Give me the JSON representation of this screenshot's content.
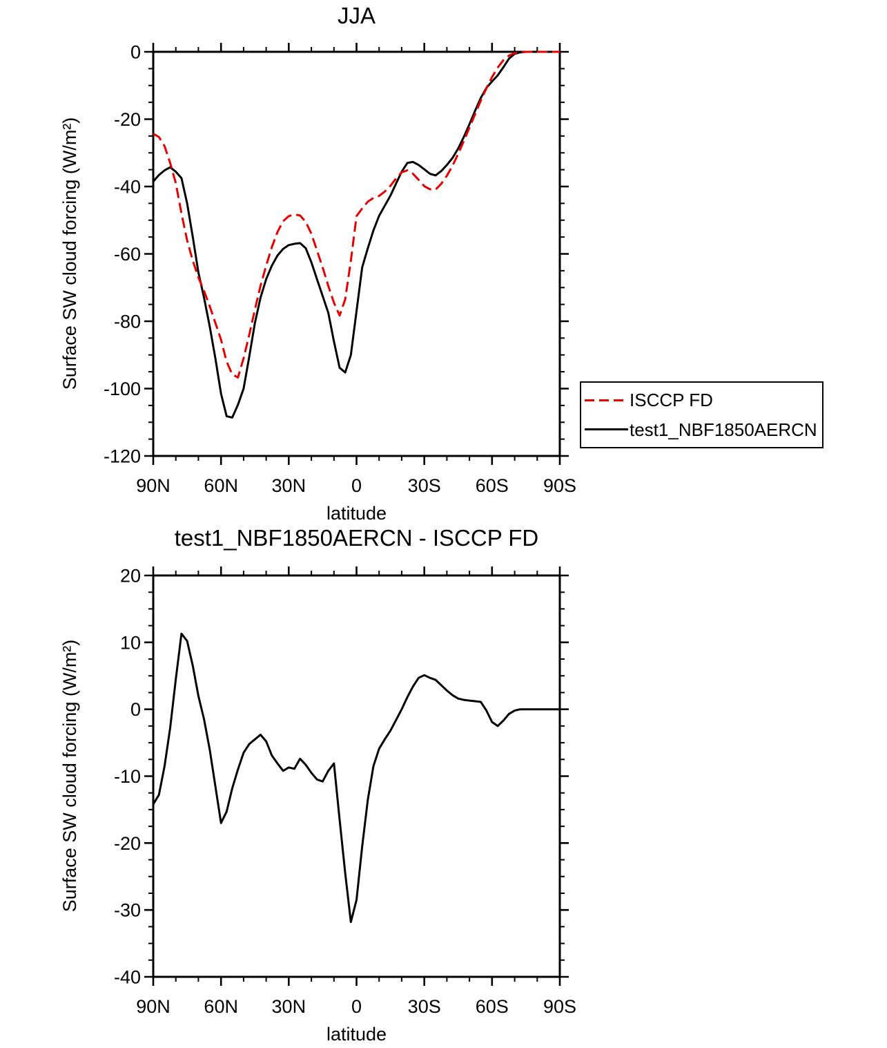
{
  "figure": {
    "background": "#ffffff",
    "axis_color": "#000000",
    "red_color": "#e60000"
  },
  "top_chart": {
    "title": "JJA",
    "xlabel": "latitude",
    "ylabel": "Surface SW cloud forcing (W/m²)",
    "legend": {
      "entries": [
        {
          "label": "ISCCP FD",
          "color": "#e60000",
          "style": "dashed"
        },
        {
          "label": "test1_NBF1850AERCN",
          "color": "#000000",
          "style": "solid"
        }
      ]
    }
  },
  "bottom_chart": {
    "title": "test1_NBF1850AERCN - ISCCP FD",
    "xlabel": "latitude",
    "ylabel": "Surface SW cloud forcing (W/m²)"
  },
  "chart_data": [
    {
      "type": "line",
      "title": "JJA",
      "xlabel": "latitude",
      "ylabel": "Surface SW cloud forcing (W/m2)",
      "xlim": [
        90,
        -90
      ],
      "ylim": [
        -120,
        0
      ],
      "x_tick_values": [
        90,
        60,
        30,
        0,
        -30,
        -60,
        -90
      ],
      "x_tick_labels": [
        "90N",
        "60N",
        "30N",
        "0",
        "30S",
        "60S",
        "90S"
      ],
      "x_minor_step": 10,
      "y_tick_values": [
        0,
        -20,
        -40,
        -60,
        -80,
        -100,
        -120
      ],
      "y_tick_labels": [
        "0",
        "-20",
        "-40",
        "-60",
        "-80",
        "-100",
        "-120"
      ],
      "y_minor_step": 5,
      "grid": false,
      "legend_position": "outside-right",
      "x": [
        90,
        87.5,
        85,
        82.5,
        80,
        77.5,
        75,
        72.5,
        70,
        67.5,
        65,
        62.5,
        60,
        57.5,
        55,
        52.5,
        50,
        47.5,
        45,
        42.5,
        40,
        37.5,
        35,
        32.5,
        30,
        27.5,
        25,
        22.5,
        20,
        17.5,
        15,
        12.5,
        10,
        7.5,
        5,
        2.5,
        0,
        -2.5,
        -5,
        -7.5,
        -10,
        -12.5,
        -15,
        -17.5,
        -20,
        -22.5,
        -25,
        -27.5,
        -30,
        -32.5,
        -35,
        -37.5,
        -40,
        -42.5,
        -45,
        -47.5,
        -50,
        -52.5,
        -55,
        -57.5,
        -60,
        -62.5,
        -65,
        -67.5,
        -70,
        -72.5,
        -75,
        -77.5,
        -80,
        -82.5,
        -85,
        -87.5,
        -90
      ],
      "series": [
        {
          "name": "test1_NBF1850AERCN",
          "color": "#000000",
          "dashed": false,
          "values": [
            -38.5,
            -36.6,
            -35.2,
            -34.3,
            -35.6,
            -37.5,
            -45,
            -55,
            -65.5,
            -73,
            -81.5,
            -91,
            -101.5,
            -108.2,
            -108.6,
            -104.8,
            -100,
            -90.5,
            -80.5,
            -73,
            -67.5,
            -63.5,
            -60.5,
            -58.5,
            -57.4,
            -57,
            -56.8,
            -58.3,
            -62.5,
            -67.5,
            -72.5,
            -77.5,
            -86,
            -93.8,
            -95.2,
            -90,
            -77,
            -64,
            -58.3,
            -53,
            -48.7,
            -45.7,
            -42.7,
            -39.1,
            -35.6,
            -33,
            -32.7,
            -33.6,
            -34.9,
            -36.2,
            -36.7,
            -35.4,
            -33.6,
            -31.5,
            -28.7,
            -25.3,
            -21.5,
            -17.5,
            -13.7,
            -10.7,
            -8.8,
            -7,
            -4.6,
            -2,
            -0.6,
            -0.15,
            0,
            0,
            0,
            0,
            0,
            0,
            0
          ]
        },
        {
          "name": "ISCCP FD",
          "color": "#e60000",
          "dashed": true,
          "values": [
            -24.3,
            -25.3,
            -28,
            -33,
            -39,
            -48,
            -56,
            -62,
            -67,
            -71,
            -75.5,
            -80.5,
            -85.5,
            -92,
            -95.8,
            -96.7,
            -91,
            -84,
            -76.5,
            -69.5,
            -63.5,
            -58,
            -53.5,
            -50.3,
            -48.8,
            -48.3,
            -48.6,
            -50.5,
            -54,
            -59,
            -64,
            -69.5,
            -74.5,
            -78.3,
            -73.5,
            -62,
            -48.8,
            -46.5,
            -44.5,
            -43.4,
            -42.8,
            -41.5,
            -39.8,
            -37.6,
            -35.8,
            -35.2,
            -36.2,
            -38,
            -39.9,
            -40.8,
            -40.9,
            -39.2,
            -36.8,
            -33.8,
            -30.3,
            -26.5,
            -22.5,
            -18.5,
            -14.5,
            -10.8,
            -7.5,
            -4.7,
            -2.5,
            -1.1,
            -0.4,
            -0.1,
            0,
            0,
            0,
            0,
            0,
            0,
            0
          ]
        }
      ]
    },
    {
      "type": "line",
      "title": "test1_NBF1850AERCN - ISCCP FD",
      "xlabel": "latitude",
      "ylabel": "Surface SW cloud forcing (W/m2)",
      "xlim": [
        90,
        -90
      ],
      "ylim": [
        -40,
        20
      ],
      "x_tick_values": [
        90,
        60,
        30,
        0,
        -30,
        -60,
        -90
      ],
      "x_tick_labels": [
        "90N",
        "60N",
        "30N",
        "0",
        "30S",
        "60S",
        "90S"
      ],
      "x_minor_step": 10,
      "y_tick_values": [
        20,
        10,
        0,
        -10,
        -20,
        -30,
        -40
      ],
      "y_tick_labels": [
        "20",
        "10",
        "0",
        "-10",
        "-20",
        "-30",
        "-40"
      ],
      "y_minor_step": 2.5,
      "grid": false,
      "legend_position": "none",
      "x": [
        90,
        87.5,
        85,
        82.5,
        80,
        77.5,
        75,
        72.5,
        70,
        67.5,
        65,
        62.5,
        60,
        57.5,
        55,
        52.5,
        50,
        47.5,
        45,
        42.5,
        40,
        37.5,
        35,
        32.5,
        30,
        27.5,
        25,
        22.5,
        20,
        17.5,
        15,
        12.5,
        10,
        7.5,
        5,
        2.5,
        0,
        -2.5,
        -5,
        -7.5,
        -10,
        -12.5,
        -15,
        -17.5,
        -20,
        -22.5,
        -25,
        -27.5,
        -30,
        -32.5,
        -35,
        -37.5,
        -40,
        -42.5,
        -45,
        -47.5,
        -50,
        -52.5,
        -55,
        -57.5,
        -60,
        -62.5,
        -65,
        -67.5,
        -70,
        -72.5,
        -75,
        -77.5,
        -80,
        -82.5,
        -85,
        -87.5,
        -90
      ],
      "series": [
        {
          "name": "test1_NBF1850AERCN - ISCCP FD",
          "color": "#000000",
          "dashed": false,
          "values": [
            -14.2,
            -12.8,
            -8.5,
            -2.8,
            4.5,
            11.3,
            10.2,
            6.5,
            2,
            -1.5,
            -6,
            -11.5,
            -17,
            -15.3,
            -11.8,
            -9,
            -6.5,
            -5.2,
            -4.5,
            -3.8,
            -4.8,
            -6.9,
            -8.1,
            -9.2,
            -8.7,
            -8.9,
            -7.4,
            -8.3,
            -9.5,
            -10.5,
            -10.8,
            -9.2,
            -8.1,
            -16.5,
            -24.5,
            -31.8,
            -28.5,
            -20.5,
            -13.5,
            -8.5,
            -5.9,
            -4.5,
            -3.2,
            -1.6,
            0,
            1.8,
            3.4,
            4.7,
            5.1,
            4.7,
            4.4,
            3.6,
            2.8,
            2.1,
            1.6,
            1.4,
            1.3,
            1.2,
            1.1,
            -0.2,
            -1.9,
            -2.5,
            -1.7,
            -0.7,
            -0.2,
            0,
            0,
            0,
            0,
            0,
            0,
            0,
            0
          ]
        }
      ]
    }
  ]
}
